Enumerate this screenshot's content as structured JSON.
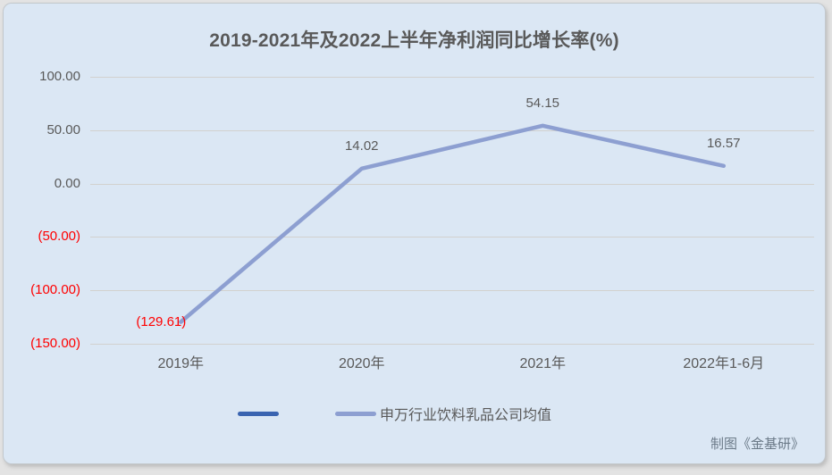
{
  "colors": {
    "outer_bg": "#e3e3e3",
    "panel_bg": "#dbe7f4",
    "panel_border": "#c3c8cc",
    "gridline": "#d2d0cb",
    "text": "#595959",
    "negative": "#ff0000",
    "series_line": "#8d9fd1",
    "legend_dark": "#3a64b0",
    "credit_text": "#6b7a88"
  },
  "chart_data": {
    "type": "line",
    "title": "2019-2021年及2022上半年净利润同比增长率(%)",
    "categories": [
      "2019年",
      "2020年",
      "2021年",
      "2022年1-6月"
    ],
    "series": [
      {
        "name": "",
        "color": "#3a64b0",
        "values": []
      },
      {
        "name": "申万行业饮料乳品公司均值",
        "color": "#8d9fd1",
        "values": [
          -129.61,
          14.02,
          54.15,
          16.57
        ]
      }
    ],
    "point_labels": [
      "(129.61)",
      "14.02",
      "54.15",
      "16.57"
    ],
    "point_label_positions": [
      "left",
      "above",
      "above",
      "above"
    ],
    "xlabel": "",
    "ylabel": "",
    "ylim": [
      -150,
      100
    ],
    "yticks": [
      {
        "value": 100,
        "label": "100.00"
      },
      {
        "value": 50,
        "label": "50.00"
      },
      {
        "value": 0,
        "label": "0.00"
      },
      {
        "value": -50,
        "label": "(50.00)"
      },
      {
        "value": -100,
        "label": "(100.00)"
      },
      {
        "value": -150,
        "label": "(150.00)"
      }
    ],
    "grid": true,
    "legend_position": "bottom"
  },
  "legend": {
    "items": [
      {
        "label": "",
        "color": "#3a64b0"
      },
      {
        "label": "申万行业饮料乳品公司均值",
        "color": "#8d9fd1"
      }
    ]
  },
  "footer": {
    "credit": "制图《金基研》"
  }
}
